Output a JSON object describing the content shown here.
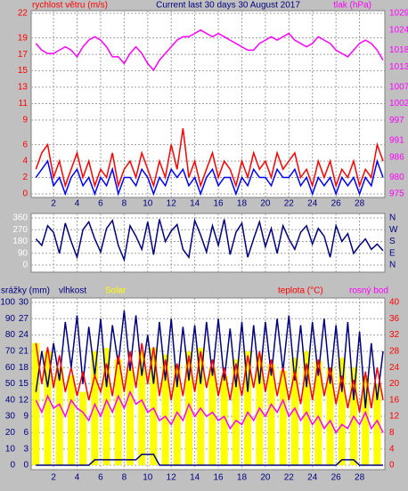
{
  "chart_data": [
    {
      "type": "line",
      "title": "Current last 30 days 30 August 2017",
      "ylabel": "rychlost větru (m/s)",
      "y2label": "tlak (hPa)",
      "x": [
        0.5,
        1,
        1.5,
        2,
        2.5,
        3,
        3.5,
        4,
        4.5,
        5,
        5.5,
        6,
        6.5,
        7,
        7.5,
        8,
        8.5,
        9,
        9.5,
        10,
        10.5,
        11,
        11.5,
        12,
        12.5,
        13,
        13.5,
        14,
        14.5,
        15,
        15.5,
        16,
        16.5,
        17,
        17.5,
        18,
        18.5,
        19,
        19.5,
        20,
        20.5,
        21,
        21.5,
        22,
        22.5,
        23,
        23.5,
        24,
        24.5,
        25,
        25.5,
        26,
        26.5,
        27,
        27.5,
        28,
        28.5,
        29,
        29.5,
        30
      ],
      "xlim": [
        0.25,
        30
      ],
      "xticks": [
        2,
        4,
        6,
        8,
        10,
        12,
        14,
        16,
        18,
        20,
        22,
        24,
        26,
        28
      ],
      "ylim": [
        0,
        22
      ],
      "yticks": [
        0,
        2,
        4,
        6,
        9,
        11,
        13,
        15,
        17,
        19,
        22
      ],
      "y2lim": [
        975,
        1029
      ],
      "y2ticks": [
        975,
        980,
        986,
        991,
        997,
        1002,
        1007,
        1013,
        1018,
        1024,
        1029
      ],
      "grid": true,
      "series": [
        {
          "color": "#ff0000",
          "values": [
            3,
            5,
            6,
            2,
            4,
            1,
            3,
            5,
            2,
            4,
            1,
            3,
            2,
            5,
            1,
            3,
            4,
            2,
            5,
            3,
            1,
            4,
            2,
            6,
            3,
            8,
            2,
            4,
            1,
            3,
            5,
            2,
            4,
            3,
            1,
            4,
            2,
            5,
            3,
            4,
            2,
            5,
            3,
            4,
            5,
            2,
            3,
            1,
            4,
            2,
            4,
            1,
            3,
            2,
            4,
            1,
            3,
            2,
            6,
            4
          ]
        },
        {
          "color": "#0000ff",
          "values": [
            2,
            3,
            4,
            1,
            2,
            0,
            2,
            3,
            1,
            2,
            0,
            2,
            1,
            3,
            0,
            2,
            2,
            1,
            3,
            2,
            0,
            2,
            1,
            3,
            2,
            3,
            1,
            2,
            0,
            2,
            3,
            1,
            2,
            2,
            0,
            2,
            1,
            3,
            2,
            2,
            1,
            3,
            2,
            2,
            3,
            1,
            2,
            0,
            2,
            1,
            2,
            0,
            2,
            1,
            2,
            0,
            2,
            1,
            4,
            2
          ]
        },
        {
          "color": "#ff00ff",
          "axis": "y2",
          "values": [
            1020,
            1018,
            1017,
            1017,
            1018,
            1019,
            1018,
            1016,
            1019,
            1021,
            1022,
            1021,
            1019,
            1016,
            1016,
            1014,
            1017,
            1019,
            1017,
            1014,
            1012,
            1015,
            1017,
            1019,
            1021,
            1022,
            1022,
            1023,
            1024,
            1023,
            1022,
            1023,
            1022,
            1021,
            1020,
            1019,
            1018,
            1018,
            1020,
            1021,
            1022,
            1021,
            1022,
            1023,
            1021,
            1020,
            1019,
            1020,
            1022,
            1021,
            1020,
            1018,
            1017,
            1016,
            1018,
            1020,
            1021,
            1020,
            1018,
            1015
          ]
        }
      ]
    },
    {
      "type": "line",
      "x": [
        0.5,
        1,
        1.5,
        2,
        2.5,
        3,
        3.5,
        4,
        4.5,
        5,
        5.5,
        6,
        6.5,
        7,
        7.5,
        8,
        8.5,
        9,
        9.5,
        10,
        10.5,
        11,
        11.5,
        12,
        12.5,
        13,
        13.5,
        14,
        14.5,
        15,
        15.5,
        16,
        16.5,
        17,
        17.5,
        18,
        18.5,
        19,
        19.5,
        20,
        20.5,
        21,
        21.5,
        22,
        22.5,
        23,
        23.5,
        24,
        24.5,
        25,
        25.5,
        26,
        26.5,
        27,
        27.5,
        28,
        28.5,
        29,
        29.5,
        30
      ],
      "xlim": [
        0.25,
        30
      ],
      "xticks": [
        2,
        4,
        6,
        8,
        10,
        12,
        14,
        16,
        18,
        20,
        22,
        24,
        26,
        28
      ],
      "show_xtick_labels": false,
      "ylim": [
        0,
        360
      ],
      "yticks": [
        0,
        90,
        180,
        270,
        360
      ],
      "y2lim": [
        0,
        360
      ],
      "y2ticks": [
        {
          "value": 0,
          "label": "N"
        },
        {
          "value": 90,
          "label": "E"
        },
        {
          "value": 180,
          "label": "S"
        },
        {
          "value": 270,
          "label": "W"
        },
        {
          "value": 360,
          "label": "N"
        }
      ],
      "grid": true,
      "series": [
        {
          "color": "#000080",
          "values": [
            200,
            150,
            300,
            250,
            90,
            320,
            180,
            60,
            270,
            330,
            200,
            100,
            280,
            340,
            150,
            40,
            300,
            220,
            120,
            330,
            80,
            350,
            180,
            260,
            310,
            120,
            60,
            340,
            230,
            100,
            300,
            150,
            350,
            80,
            250,
            320,
            60,
            200,
            330,
            140,
            280,
            90,
            300,
            200,
            120,
            250,
            300,
            160,
            280,
            220,
            60,
            300,
            180,
            240,
            90,
            150,
            200,
            120,
            160,
            110
          ]
        }
      ]
    },
    {
      "type": "line",
      "x": [
        0.5,
        1,
        1.5,
        2,
        2.5,
        3,
        3.5,
        4,
        4.5,
        5,
        5.5,
        6,
        6.5,
        7,
        7.5,
        8,
        8.5,
        9,
        9.5,
        10,
        10.5,
        11,
        11.5,
        12,
        12.5,
        13,
        13.5,
        14,
        14.5,
        15,
        15.5,
        16,
        16.5,
        17,
        17.5,
        18,
        18.5,
        19,
        19.5,
        20,
        20.5,
        21,
        21.5,
        22,
        22.5,
        23,
        23.5,
        24,
        24.5,
        25,
        25.5,
        26,
        26.5,
        27,
        27.5,
        28,
        28.5,
        29,
        29.5,
        30
      ],
      "xlim": [
        0.25,
        30
      ],
      "xticks": [
        2,
        4,
        6,
        8,
        10,
        12,
        14,
        16,
        18,
        20,
        22,
        24,
        26,
        28
      ],
      "ylim": [
        0,
        100
      ],
      "yticks": [
        0,
        10,
        20,
        30,
        40,
        50,
        60,
        70,
        80,
        90,
        100
      ],
      "y3lim": [
        0,
        30
      ],
      "y3ticks": [
        0,
        3,
        6,
        9,
        12,
        15,
        18,
        21,
        24,
        27,
        30
      ],
      "y2lim": [
        0,
        40
      ],
      "y2ticks": [
        0,
        4,
        8,
        12,
        16,
        20,
        24,
        28,
        32,
        36,
        40
      ],
      "grid": true,
      "series": [
        {
          "name": "srážky (mm)",
          "color": "#000080",
          "axis": "y3",
          "values": [
            0,
            0,
            0,
            0,
            0,
            0,
            0,
            0,
            0,
            0,
            1,
            1,
            1,
            1,
            1,
            1,
            1,
            1,
            2,
            2,
            2,
            0,
            0,
            0,
            0,
            0,
            0,
            0,
            0,
            0,
            0,
            0,
            0,
            0,
            0,
            0,
            0,
            0,
            0,
            0,
            0,
            0,
            0,
            0,
            0,
            0,
            0,
            0,
            0,
            0,
            0,
            0,
            1,
            1,
            1,
            0,
            0,
            0,
            0,
            0
          ]
        },
        {
          "name": "vlhkost",
          "color": "#000080",
          "values": [
            45,
            70,
            48,
            75,
            52,
            88,
            60,
            92,
            50,
            85,
            55,
            90,
            48,
            86,
            62,
            95,
            58,
            92,
            55,
            80,
            50,
            88,
            52,
            90,
            48,
            85,
            52,
            86,
            50,
            88,
            55,
            90,
            52,
            84,
            48,
            88,
            45,
            86,
            50,
            88,
            55,
            90,
            58,
            92,
            52,
            86,
            48,
            88,
            55,
            90,
            50,
            86,
            45,
            88,
            40,
            82,
            35,
            75,
            40,
            70
          ]
        },
        {
          "name": "Solar",
          "color": "#ffff00",
          "type": "bar",
          "x": [
            0.5,
            1.5,
            2.5,
            3.5,
            4.5,
            5.5,
            6.5,
            7.5,
            8.5,
            9.5,
            10.5,
            11.5,
            12.5,
            13.5,
            14.5,
            15.5,
            16.5,
            17.5,
            18.5,
            19.5,
            20.5,
            21.5,
            22.5,
            23.5,
            24.5,
            25.5,
            26.5,
            27.5,
            28.5,
            29.5
          ],
          "values": [
            75,
            70,
            60,
            55,
            45,
            70,
            72,
            65,
            60,
            70,
            72,
            68,
            62,
            70,
            72,
            60,
            55,
            65,
            70,
            68,
            62,
            58,
            66,
            70,
            64,
            60,
            66,
            60,
            55,
            50
          ]
        },
        {
          "name": "teplota (°C)",
          "color": "#ff0000",
          "axis": "y2",
          "values": [
            30,
            20,
            29,
            19,
            27,
            18,
            24,
            17,
            23,
            16,
            22,
            18,
            25,
            17,
            27,
            18,
            28,
            19,
            30,
            20,
            29,
            17,
            26,
            16,
            25,
            17,
            27,
            18,
            28,
            19,
            26,
            17,
            24,
            16,
            25,
            17,
            27,
            19,
            28,
            18,
            26,
            17,
            24,
            16,
            23,
            15,
            25,
            16,
            26,
            17,
            24,
            15,
            22,
            14,
            21,
            13,
            23,
            14,
            24,
            16
          ]
        },
        {
          "name": "rosný bod",
          "color": "#ff00ff",
          "axis": "y2",
          "values": [
            16,
            13,
            17,
            14,
            15,
            12,
            16,
            14,
            13,
            11,
            15,
            12,
            16,
            13,
            17,
            14,
            18,
            15,
            16,
            13,
            14,
            11,
            12,
            10,
            13,
            11,
            15,
            12,
            14,
            12,
            13,
            11,
            12,
            9,
            11,
            10,
            13,
            11,
            14,
            12,
            15,
            13,
            16,
            12,
            14,
            11,
            13,
            10,
            12,
            9,
            11,
            8,
            10,
            9,
            12,
            10,
            13,
            9,
            11,
            8
          ]
        }
      ]
    }
  ]
}
